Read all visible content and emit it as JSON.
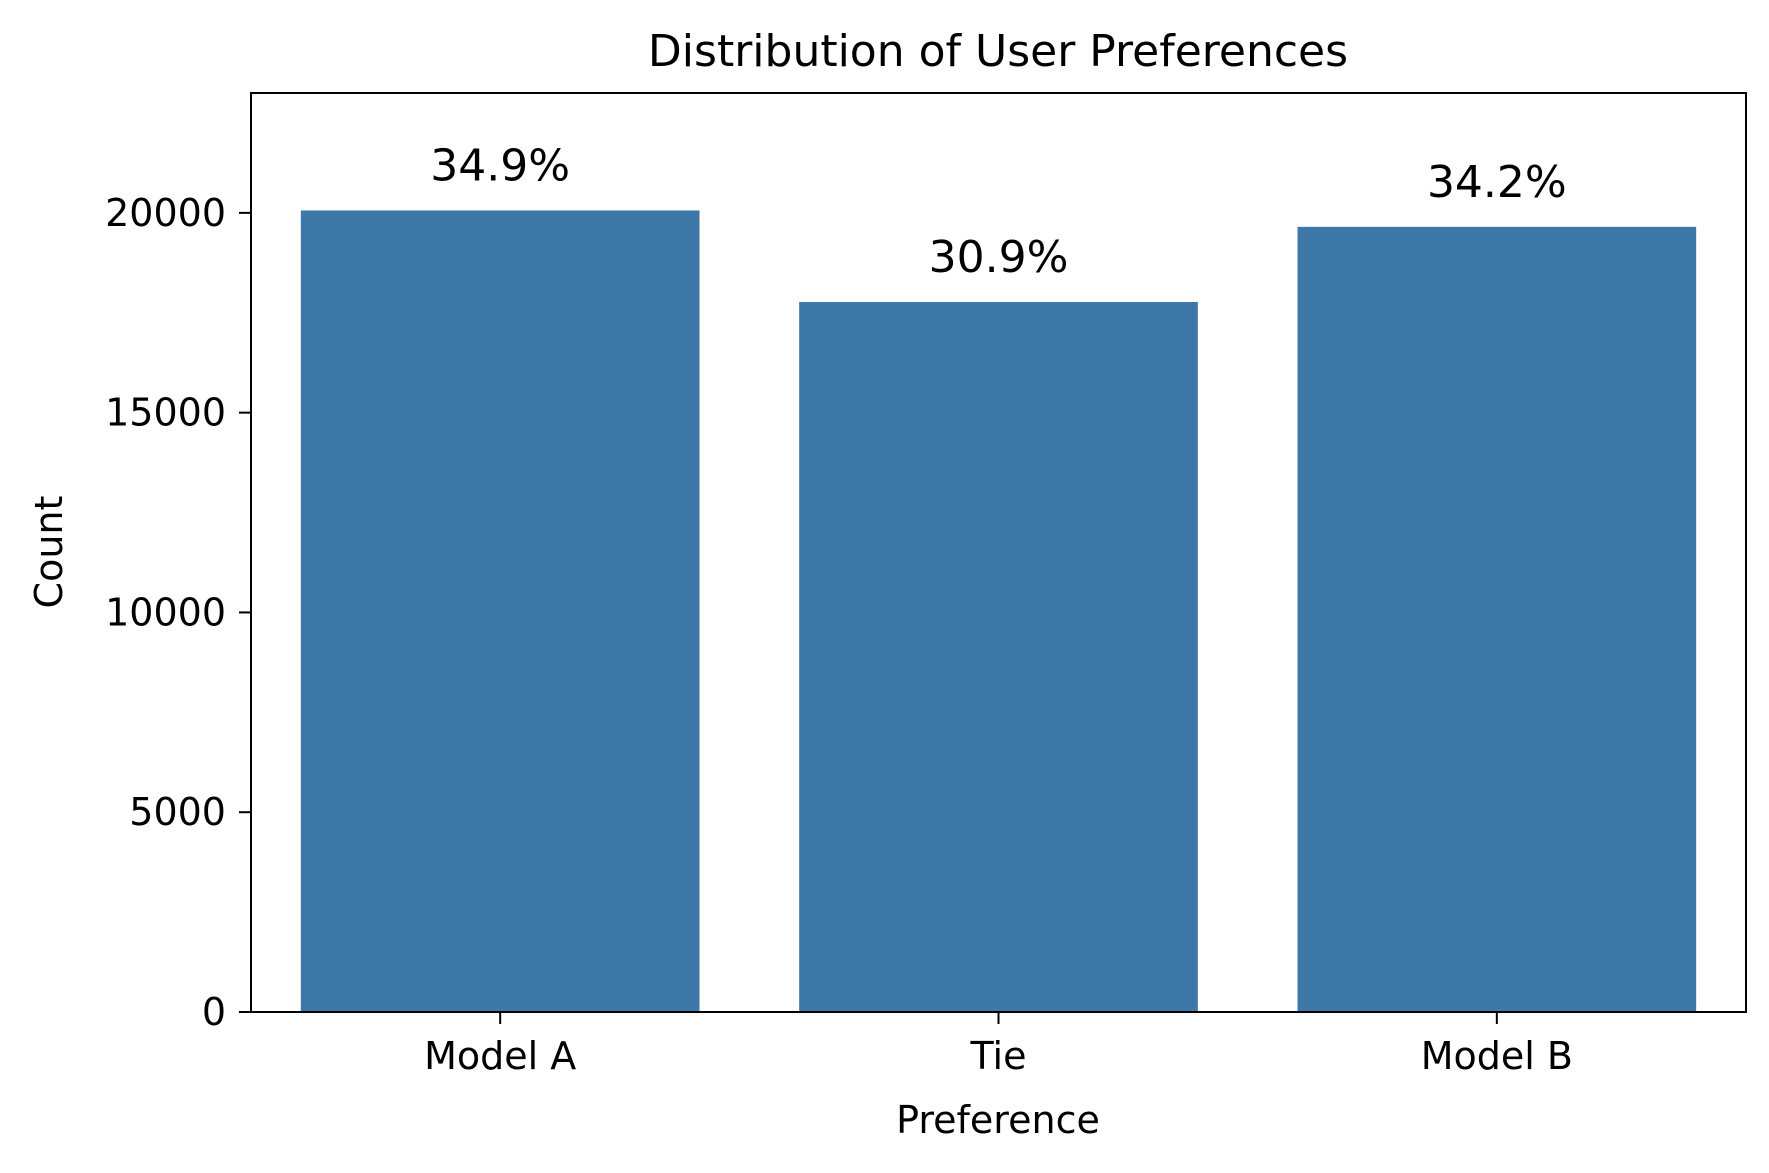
{
  "chart_data": {
    "type": "bar",
    "title": "Distribution of User Preferences",
    "xlabel": "Preference",
    "ylabel": "Count",
    "categories": [
      "Model A",
      "Tie",
      "Model B"
    ],
    "values": [
      20060,
      17770,
      19650
    ],
    "data_labels": [
      "34.9%",
      "30.9%",
      "34.2%"
    ],
    "ylim": [
      0,
      23000
    ],
    "yticks": [
      0,
      5000,
      10000,
      15000,
      20000
    ],
    "ytick_labels": [
      "0",
      "5000",
      "10000",
      "15000",
      "20000"
    ],
    "grid": false,
    "bar_color": "#3d78a8"
  }
}
